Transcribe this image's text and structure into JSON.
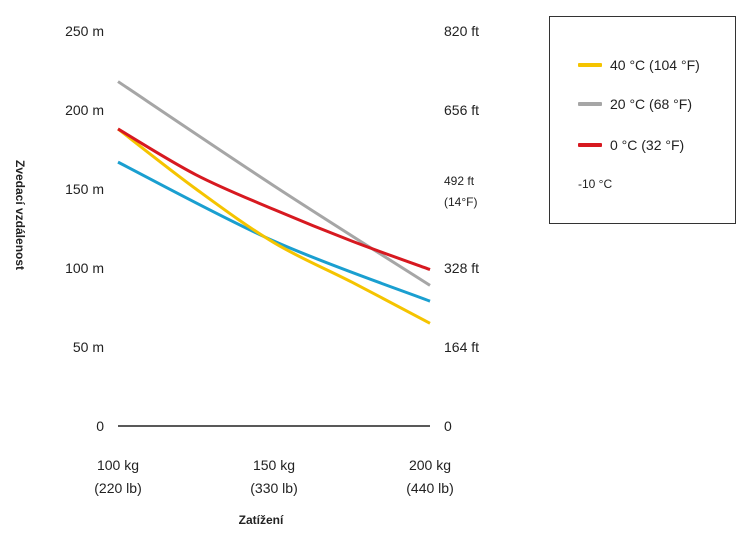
{
  "chart_data": {
    "type": "line",
    "xlabel": "Zatížení",
    "ylabel": "Zvedací vzdálenost",
    "x": [
      100,
      150,
      200
    ],
    "x_tick_labels": [
      {
        "value": 100,
        "line1": "100 kg",
        "line2": "(220 lb)"
      },
      {
        "value": 150,
        "line1": "150 kg",
        "line2": "(330 lb)"
      },
      {
        "value": 200,
        "line1": "200 kg",
        "line2": "(440 lb)"
      }
    ],
    "left_y_ticks": [
      {
        "value": 0,
        "label": "0"
      },
      {
        "value": 50,
        "label": "50 m"
      },
      {
        "value": 100,
        "label": "100 m"
      },
      {
        "value": 150,
        "label": "150 m"
      },
      {
        "value": 200,
        "label": "200 m"
      },
      {
        "value": 250,
        "label": "250 m"
      }
    ],
    "right_y_ticks": [
      {
        "value": 0,
        "label": "0"
      },
      {
        "value": 50,
        "label": "164 ft"
      },
      {
        "value": 100,
        "label": "328 ft"
      },
      {
        "value": 150,
        "label": "492 ft",
        "note": "(14°F)"
      },
      {
        "value": 200,
        "label": "656 ft"
      },
      {
        "value": 250,
        "label": "820 ft"
      }
    ],
    "ylim": [
      0,
      250
    ],
    "grid": false,
    "legend_position": "top-right",
    "series": [
      {
        "name": "40 °C (104 °F)",
        "color": "#f5c400",
        "points": [
          [
            100,
            188
          ],
          [
            125,
            150
          ],
          [
            150,
            116
          ],
          [
            175,
            91
          ],
          [
            200,
            65
          ]
        ]
      },
      {
        "name": "20 °C (68 °F)",
        "color": "#a6a6a6",
        "points": [
          [
            100,
            218
          ],
          [
            150,
            152
          ],
          [
            200,
            89
          ]
        ]
      },
      {
        "name": "0 °C (32 °F)",
        "color": "#d71920",
        "points": [
          [
            100,
            188
          ],
          [
            125,
            159
          ],
          [
            150,
            137
          ],
          [
            175,
            117
          ],
          [
            200,
            99
          ]
        ]
      },
      {
        "color": "#1a9fd0",
        "points": [
          [
            100,
            167
          ],
          [
            150,
            117
          ],
          [
            200,
            79
          ]
        ]
      }
    ],
    "legend_note": "-10 °C"
  }
}
